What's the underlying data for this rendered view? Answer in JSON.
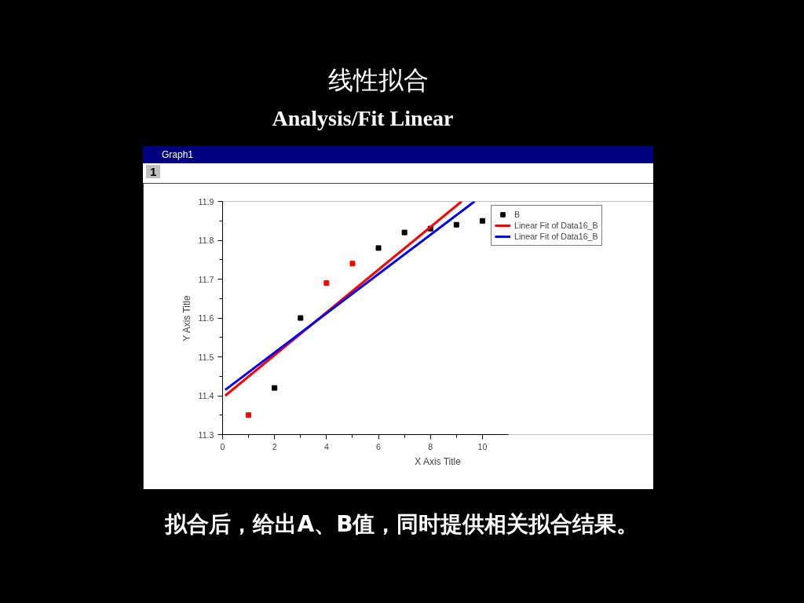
{
  "chart_data": {
    "type": "scatter",
    "title": "线性拟合",
    "subtitle": "Analysis/Fit Linear",
    "xlabel": "X Axis Title",
    "ylabel": "Y Axis Title",
    "annotations": [
      "Graph1",
      "1",
      "拟合后，给出A、B值，同时提供相关拟合结果。"
    ],
    "x": [
      1,
      2,
      3,
      4,
      5,
      6,
      7,
      8,
      9,
      10
    ],
    "series": [
      {
        "name": "B",
        "marker": "square",
        "color": "#000000",
        "colors": [
          "#ff0000",
          "#000000",
          "#000000",
          "#ff0000",
          "#ff0000",
          "#000000",
          "#000000",
          "#000000",
          "#000000",
          "#000000"
        ],
        "values": [
          11.35,
          11.42,
          11.6,
          11.69,
          11.74,
          11.78,
          11.82,
          11.83,
          11.84,
          11.85
        ]
      },
      {
        "name": "Linear Fit of Data16_B",
        "type": "line",
        "color": "#ff0000",
        "x": [
          0.1,
          9.2
        ],
        "values": [
          11.4,
          11.9
        ]
      },
      {
        "name": "Linear Fit of Data16_B",
        "type": "line",
        "color": "#0000ff",
        "x": [
          0.1,
          9.7
        ],
        "values": [
          11.415,
          11.9
        ]
      }
    ],
    "xlim": [
      0,
      11
    ],
    "ylim": [
      11.3,
      11.9
    ],
    "xticks": [
      0,
      2,
      4,
      6,
      8,
      10
    ],
    "yticks": [
      11.3,
      11.4,
      11.5,
      11.6,
      11.7,
      11.8,
      11.9
    ],
    "line_style": "solid",
    "legend": "top right",
    "grid": false
  }
}
